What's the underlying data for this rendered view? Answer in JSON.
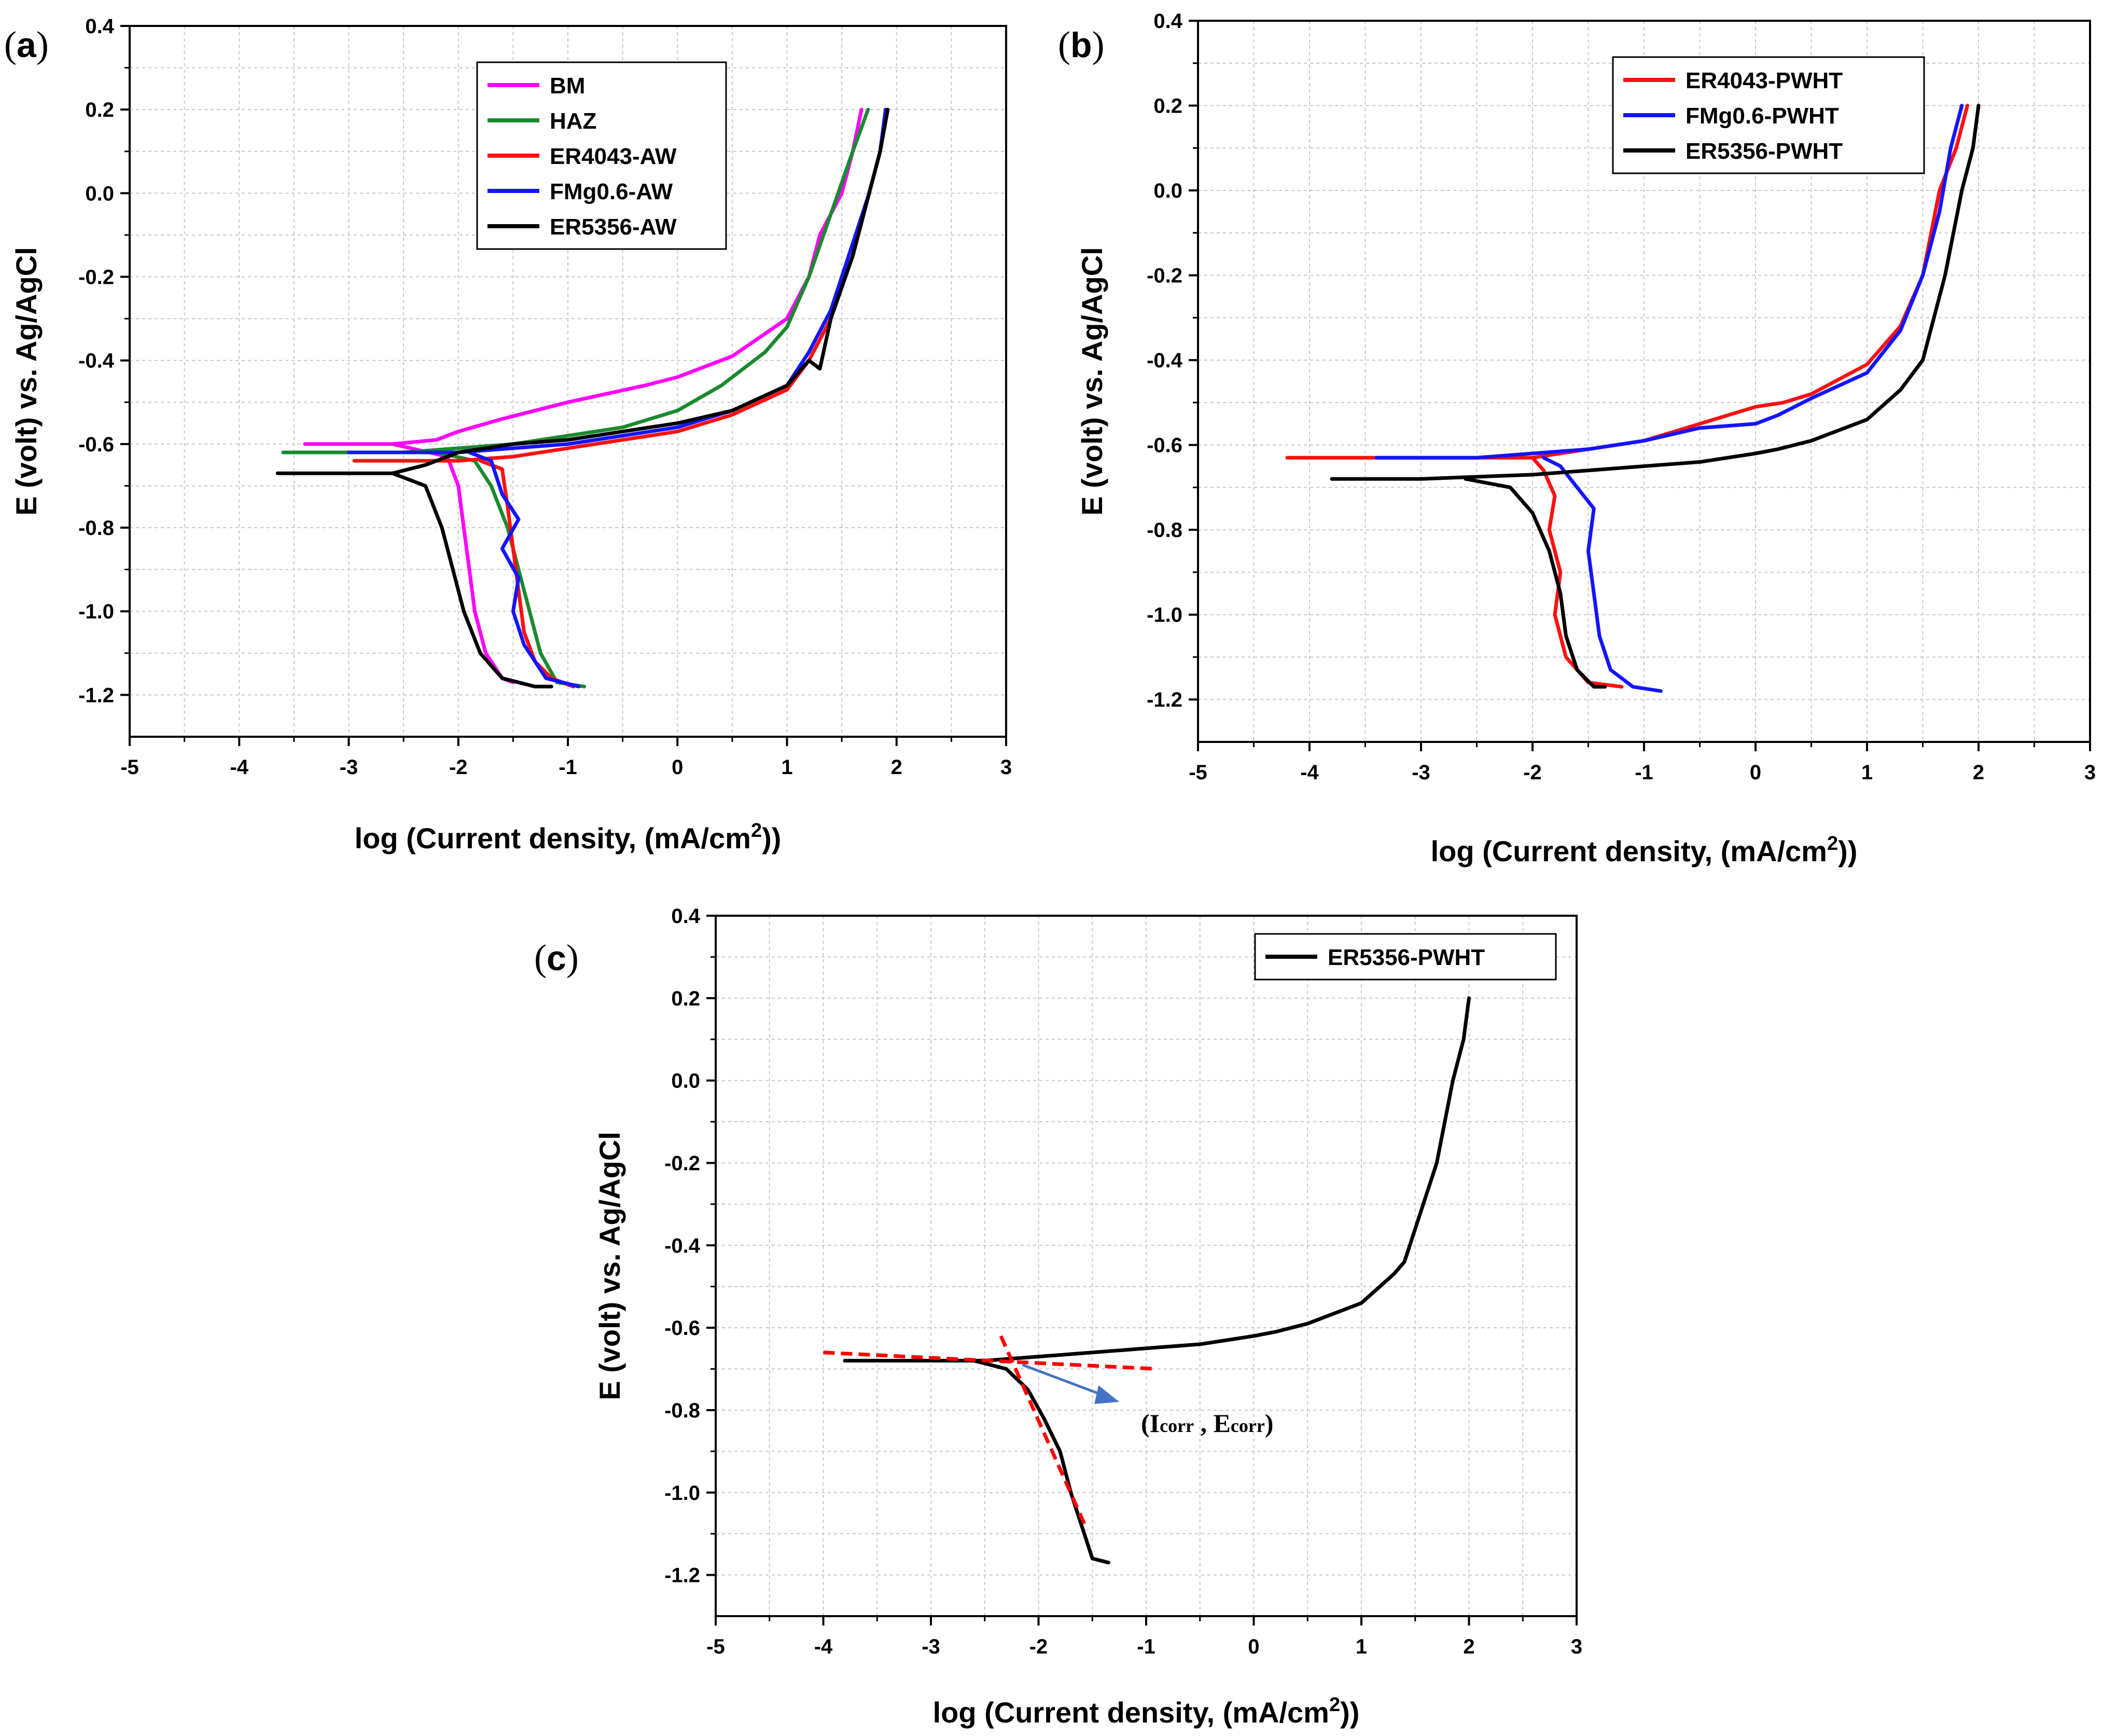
{
  "chart_data": [
    {
      "panel": "a",
      "panel_label": "a",
      "type": "line",
      "xlabel": "log (Current density, (mA/cm",
      "xlabel_sup": "2",
      "xlabel_end": "))",
      "ylabel": "E (volt) vs. Ag/AgCl",
      "xlim": [
        -5,
        3
      ],
      "ylim": [
        -1.3,
        0.4
      ],
      "xticks": [
        "-5",
        "-4",
        "-3",
        "-2",
        "-1",
        "0",
        "1",
        "2",
        "3"
      ],
      "yticks": [
        "-1.2",
        "-1.0",
        "-0.8",
        "-0.6",
        "-0.4",
        "-0.2",
        "0.0",
        "0.2",
        "0.4"
      ],
      "grid": true,
      "legend": "top-center",
      "series": [
        {
          "name": "BM",
          "color": "#ff00ff",
          "points": [
            [
              -3.4,
              -0.6
            ],
            [
              -2.6,
              -0.6
            ],
            [
              -2.2,
              -0.59
            ],
            [
              -2.0,
              -0.57
            ],
            [
              -1.6,
              -0.54
            ],
            [
              -1.0,
              -0.5
            ],
            [
              -0.3,
              -0.46
            ],
            [
              0.0,
              -0.44
            ],
            [
              0.5,
              -0.39
            ],
            [
              1.0,
              -0.3
            ],
            [
              1.2,
              -0.2
            ],
            [
              1.3,
              -0.1
            ],
            [
              1.5,
              0.0
            ],
            [
              1.6,
              0.1
            ],
            [
              1.68,
              0.2
            ]
          ],
          "cathodic": [
            [
              -2.6,
              -0.6
            ],
            [
              -2.1,
              -0.63
            ],
            [
              -2.0,
              -0.7
            ],
            [
              -1.95,
              -0.8
            ],
            [
              -1.9,
              -0.9
            ],
            [
              -1.85,
              -1.0
            ],
            [
              -1.75,
              -1.1
            ],
            [
              -1.6,
              -1.16
            ],
            [
              -1.5,
              -1.17
            ]
          ]
        },
        {
          "name": "HAZ",
          "color": "#1a8a2e",
          "points": [
            [
              -3.6,
              -0.62
            ],
            [
              -2.5,
              -0.62
            ],
            [
              -2.0,
              -0.61
            ],
            [
              -1.5,
              -0.6
            ],
            [
              -1.0,
              -0.58
            ],
            [
              -0.5,
              -0.56
            ],
            [
              0.0,
              -0.52
            ],
            [
              0.4,
              -0.46
            ],
            [
              0.8,
              -0.38
            ],
            [
              1.0,
              -0.32
            ],
            [
              1.2,
              -0.2
            ],
            [
              1.4,
              -0.05
            ],
            [
              1.6,
              0.1
            ],
            [
              1.74,
              0.2
            ]
          ],
          "cathodic": [
            [
              -2.2,
              -0.62
            ],
            [
              -1.85,
              -0.64
            ],
            [
              -1.7,
              -0.7
            ],
            [
              -1.55,
              -0.8
            ],
            [
              -1.45,
              -0.9
            ],
            [
              -1.35,
              -1.0
            ],
            [
              -1.25,
              -1.1
            ],
            [
              -1.1,
              -1.17
            ],
            [
              -0.85,
              -1.18
            ]
          ]
        },
        {
          "name": "ER4043-AW",
          "color": "#ff1010",
          "points": [
            [
              -2.95,
              -0.64
            ],
            [
              -2.0,
              -0.64
            ],
            [
              -1.5,
              -0.63
            ],
            [
              -1.0,
              -0.61
            ],
            [
              -0.5,
              -0.59
            ],
            [
              0.0,
              -0.57
            ],
            [
              0.5,
              -0.53
            ],
            [
              1.0,
              -0.47
            ],
            [
              1.2,
              -0.4
            ],
            [
              1.4,
              -0.3
            ],
            [
              1.6,
              -0.15
            ],
            [
              1.75,
              0.0
            ],
            [
              1.85,
              0.1
            ],
            [
              1.9,
              0.2
            ]
          ],
          "cathodic": [
            [
              -1.8,
              -0.64
            ],
            [
              -1.6,
              -0.66
            ],
            [
              -1.55,
              -0.75
            ],
            [
              -1.5,
              -0.85
            ],
            [
              -1.45,
              -0.95
            ],
            [
              -1.4,
              -1.05
            ],
            [
              -1.3,
              -1.12
            ],
            [
              -1.15,
              -1.16
            ],
            [
              -0.95,
              -1.18
            ]
          ]
        },
        {
          "name": "FMg0.6-AW",
          "color": "#1414ff",
          "points": [
            [
              -3.0,
              -0.62
            ],
            [
              -2.0,
              -0.62
            ],
            [
              -1.5,
              -0.61
            ],
            [
              -1.0,
              -0.6
            ],
            [
              -0.5,
              -0.58
            ],
            [
              0.0,
              -0.56
            ],
            [
              0.5,
              -0.52
            ],
            [
              1.0,
              -0.46
            ],
            [
              1.2,
              -0.38
            ],
            [
              1.4,
              -0.28
            ],
            [
              1.6,
              -0.12
            ],
            [
              1.75,
              0.0
            ],
            [
              1.85,
              0.1
            ],
            [
              1.9,
              0.2
            ]
          ],
          "cathodic": [
            [
              -1.9,
              -0.62
            ],
            [
              -1.7,
              -0.64
            ],
            [
              -1.6,
              -0.72
            ],
            [
              -1.45,
              -0.78
            ],
            [
              -1.6,
              -0.85
            ],
            [
              -1.45,
              -0.92
            ],
            [
              -1.5,
              -1.0
            ],
            [
              -1.4,
              -1.08
            ],
            [
              -1.2,
              -1.16
            ],
            [
              -0.9,
              -1.18
            ]
          ]
        },
        {
          "name": "ER5356-AW",
          "color": "#000000",
          "points": [
            [
              -3.65,
              -0.67
            ],
            [
              -2.6,
              -0.67
            ],
            [
              -2.3,
              -0.65
            ],
            [
              -2.0,
              -0.62
            ],
            [
              -1.5,
              -0.6
            ],
            [
              -1.0,
              -0.59
            ],
            [
              -0.5,
              -0.57
            ],
            [
              0.0,
              -0.55
            ],
            [
              0.5,
              -0.52
            ],
            [
              1.0,
              -0.46
            ],
            [
              1.2,
              -0.4
            ],
            [
              1.3,
              -0.42
            ],
            [
              1.4,
              -0.3
            ],
            [
              1.6,
              -0.15
            ],
            [
              1.75,
              0.0
            ],
            [
              1.85,
              0.1
            ],
            [
              1.92,
              0.2
            ]
          ],
          "cathodic": [
            [
              -2.6,
              -0.67
            ],
            [
              -2.3,
              -0.7
            ],
            [
              -2.15,
              -0.8
            ],
            [
              -2.05,
              -0.9
            ],
            [
              -1.95,
              -1.0
            ],
            [
              -1.8,
              -1.1
            ],
            [
              -1.6,
              -1.16
            ],
            [
              -1.3,
              -1.18
            ],
            [
              -1.15,
              -1.18
            ]
          ]
        }
      ]
    },
    {
      "panel": "b",
      "panel_label": "b",
      "type": "line",
      "xlabel": "log (Current density, (mA/cm",
      "xlabel_sup": "2",
      "xlabel_end": "))",
      "ylabel": "E (volt) vs. Ag/AgCl",
      "xlim": [
        -5,
        3
      ],
      "ylim": [
        -1.3,
        0.4
      ],
      "xticks": [
        "-5",
        "-4",
        "-3",
        "-2",
        "-1",
        "0",
        "1",
        "2",
        "3"
      ],
      "yticks": [
        "-1.2",
        "-1.0",
        "-0.8",
        "-0.6",
        "-0.4",
        "-0.2",
        "0.0",
        "0.2",
        "0.4"
      ],
      "grid": true,
      "legend": "top-right",
      "series": [
        {
          "name": "ER4043-PWHT",
          "color": "#ff1010",
          "points": [
            [
              -4.2,
              -0.63
            ],
            [
              -3.0,
              -0.63
            ],
            [
              -2.0,
              -0.63
            ],
            [
              -1.5,
              -0.61
            ],
            [
              -1.0,
              -0.59
            ],
            [
              -0.5,
              -0.55
            ],
            [
              0.0,
              -0.51
            ],
            [
              0.25,
              -0.5
            ],
            [
              0.5,
              -0.48
            ],
            [
              1.0,
              -0.41
            ],
            [
              1.3,
              -0.32
            ],
            [
              1.5,
              -0.2
            ],
            [
              1.65,
              0.0
            ],
            [
              1.8,
              0.1
            ],
            [
              1.9,
              0.2
            ]
          ],
          "cathodic": [
            [
              -2.0,
              -0.63
            ],
            [
              -1.9,
              -0.66
            ],
            [
              -1.8,
              -0.72
            ],
            [
              -1.85,
              -0.8
            ],
            [
              -1.75,
              -0.9
            ],
            [
              -1.8,
              -1.0
            ],
            [
              -1.7,
              -1.1
            ],
            [
              -1.5,
              -1.16
            ],
            [
              -1.2,
              -1.17
            ]
          ]
        },
        {
          "name": "FMg0.6-PWHT",
          "color": "#1414ff",
          "points": [
            [
              -3.4,
              -0.63
            ],
            [
              -2.5,
              -0.63
            ],
            [
              -2.0,
              -0.62
            ],
            [
              -1.5,
              -0.61
            ],
            [
              -1.0,
              -0.59
            ],
            [
              -0.5,
              -0.56
            ],
            [
              0.0,
              -0.55
            ],
            [
              0.2,
              -0.53
            ],
            [
              0.5,
              -0.49
            ],
            [
              1.0,
              -0.43
            ],
            [
              1.3,
              -0.33
            ],
            [
              1.5,
              -0.2
            ],
            [
              1.65,
              -0.05
            ],
            [
              1.75,
              0.1
            ],
            [
              1.85,
              0.2
            ]
          ],
          "cathodic": [
            [
              -1.9,
              -0.63
            ],
            [
              -1.75,
              -0.65
            ],
            [
              -1.6,
              -0.7
            ],
            [
              -1.45,
              -0.75
            ],
            [
              -1.5,
              -0.85
            ],
            [
              -1.45,
              -0.95
            ],
            [
              -1.4,
              -1.05
            ],
            [
              -1.3,
              -1.13
            ],
            [
              -1.1,
              -1.17
            ],
            [
              -0.85,
              -1.18
            ]
          ]
        },
        {
          "name": "ER5356-PWHT",
          "color": "#000000",
          "points": [
            [
              -3.8,
              -0.68
            ],
            [
              -3.0,
              -0.68
            ],
            [
              -2.0,
              -0.67
            ],
            [
              -1.5,
              -0.66
            ],
            [
              -1.0,
              -0.65
            ],
            [
              -0.5,
              -0.64
            ],
            [
              0.0,
              -0.62
            ],
            [
              0.2,
              -0.61
            ],
            [
              0.5,
              -0.59
            ],
            [
              1.0,
              -0.54
            ],
            [
              1.3,
              -0.47
            ],
            [
              1.5,
              -0.4
            ],
            [
              1.7,
              -0.2
            ],
            [
              1.85,
              0.0
            ],
            [
              1.95,
              0.1
            ],
            [
              2.0,
              0.2
            ]
          ],
          "cathodic": [
            [
              -2.6,
              -0.68
            ],
            [
              -2.2,
              -0.7
            ],
            [
              -2.0,
              -0.76
            ],
            [
              -1.85,
              -0.85
            ],
            [
              -1.75,
              -0.95
            ],
            [
              -1.7,
              -1.05
            ],
            [
              -1.6,
              -1.13
            ],
            [
              -1.45,
              -1.17
            ],
            [
              -1.35,
              -1.17
            ]
          ]
        }
      ]
    },
    {
      "panel": "c",
      "panel_label": "c",
      "type": "line",
      "xlabel": "log (Current density, (mA/cm",
      "xlabel_sup": "2",
      "xlabel_end": "))",
      "ylabel": "E (volt) vs. Ag/AgCl",
      "xlim": [
        -5,
        3
      ],
      "ylim": [
        -1.3,
        0.4
      ],
      "xticks": [
        "-5",
        "-4",
        "-3",
        "-2",
        "-1",
        "0",
        "1",
        "2",
        "3"
      ],
      "yticks": [
        "-1.2",
        "-1.0",
        "-0.8",
        "-0.6",
        "-0.4",
        "-0.2",
        "0.0",
        "0.2",
        "0.4"
      ],
      "grid": true,
      "legend": "top-right",
      "series": [
        {
          "name": "ER5356-PWHT",
          "color": "#000000",
          "points": [
            [
              -3.8,
              -0.68
            ],
            [
              -3.0,
              -0.68
            ],
            [
              -2.5,
              -0.68
            ],
            [
              -2.0,
              -0.67
            ],
            [
              -1.5,
              -0.66
            ],
            [
              -1.0,
              -0.65
            ],
            [
              -0.5,
              -0.64
            ],
            [
              0.0,
              -0.62
            ],
            [
              0.2,
              -0.61
            ],
            [
              0.5,
              -0.59
            ],
            [
              1.0,
              -0.54
            ],
            [
              1.3,
              -0.47
            ],
            [
              1.4,
              -0.44
            ],
            [
              1.5,
              -0.36
            ],
            [
              1.7,
              -0.2
            ],
            [
              1.85,
              0.0
            ],
            [
              1.95,
              0.1
            ],
            [
              2.0,
              0.2
            ]
          ],
          "cathodic": [
            [
              -2.6,
              -0.68
            ],
            [
              -2.3,
              -0.7
            ],
            [
              -2.1,
              -0.75
            ],
            [
              -1.95,
              -0.82
            ],
            [
              -1.8,
              -0.9
            ],
            [
              -1.7,
              -1.0
            ],
            [
              -1.6,
              -1.08
            ],
            [
              -1.5,
              -1.16
            ],
            [
              -1.35,
              -1.17
            ]
          ]
        }
      ],
      "tafel_lines": [
        {
          "name": "anodic-tafel-fit",
          "color": "#ff0000",
          "points": [
            [
              -4.0,
              -0.66
            ],
            [
              -0.9,
              -0.7
            ]
          ]
        },
        {
          "name": "cathodic-tafel-fit",
          "color": "#ff0000",
          "points": [
            [
              -2.35,
              -0.62
            ],
            [
              -1.55,
              -1.09
            ]
          ]
        }
      ],
      "annotation": {
        "open": "(",
        "i_main": "I",
        "i_sub": "corr",
        "sep": " , ",
        "e_main": "E",
        "e_sub": "corr",
        "close": ")",
        "arrow_color": "#4472c4"
      }
    }
  ]
}
